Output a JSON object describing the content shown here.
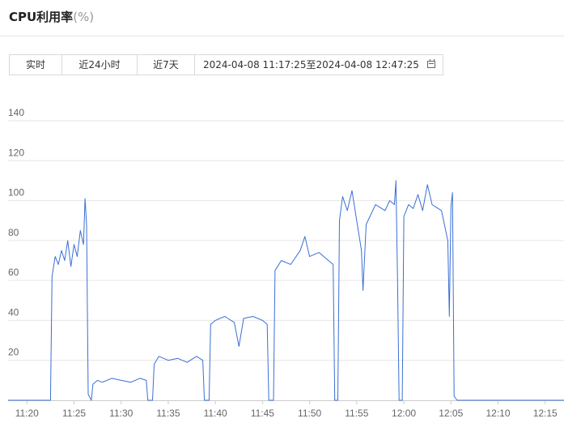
{
  "header": {
    "title": "CPU利用率",
    "unit": "(%)"
  },
  "toolbar": {
    "realtime": "实时",
    "last24h": "近24小时",
    "last7d": "近7天",
    "range_text": "2024-04-08 11:17:25至2024-04-08 12:47:25",
    "calendar_icon": "calendar-icon"
  },
  "chart_data": {
    "type": "line",
    "xlabel": "",
    "ylabel": "",
    "ylim": [
      0,
      140
    ],
    "yticks": [
      20,
      40,
      60,
      80,
      100,
      120,
      140
    ],
    "xticks": [
      "11:20",
      "11:25",
      "11:30",
      "11:35",
      "11:40",
      "11:45",
      "11:50",
      "11:55",
      "12:00",
      "12:05",
      "12:10",
      "12:15"
    ],
    "xlim": [
      "11:18:00",
      "12:17:00"
    ],
    "grid": "horizontal",
    "series": [
      {
        "color": "#3b6fd4",
        "points": [
          [
            "11:18:00",
            0
          ],
          [
            "11:22:30",
            0
          ],
          [
            "11:22:40",
            62
          ],
          [
            "11:23:00",
            72
          ],
          [
            "11:23:20",
            68
          ],
          [
            "11:23:40",
            75
          ],
          [
            "11:24:00",
            70
          ],
          [
            "11:24:20",
            80
          ],
          [
            "11:24:40",
            67
          ],
          [
            "11:25:00",
            78
          ],
          [
            "11:25:20",
            72
          ],
          [
            "11:25:40",
            85
          ],
          [
            "11:26:00",
            78
          ],
          [
            "11:26:10",
            101
          ],
          [
            "11:26:20",
            88
          ],
          [
            "11:26:30",
            3
          ],
          [
            "11:26:50",
            0
          ],
          [
            "11:27:00",
            8
          ],
          [
            "11:27:30",
            10
          ],
          [
            "11:28:00",
            9
          ],
          [
            "11:29:00",
            11
          ],
          [
            "11:30:00",
            10
          ],
          [
            "11:31:00",
            9
          ],
          [
            "11:32:00",
            11
          ],
          [
            "11:32:40",
            10
          ],
          [
            "11:32:50",
            0
          ],
          [
            "11:33:20",
            0
          ],
          [
            "11:33:30",
            18
          ],
          [
            "11:34:00",
            22
          ],
          [
            "11:35:00",
            20
          ],
          [
            "11:36:00",
            21
          ],
          [
            "11:37:00",
            19
          ],
          [
            "11:38:00",
            22
          ],
          [
            "11:38:40",
            20
          ],
          [
            "11:38:50",
            0
          ],
          [
            "11:39:20",
            0
          ],
          [
            "11:39:30",
            38
          ],
          [
            "11:40:00",
            40
          ],
          [
            "11:41:00",
            42
          ],
          [
            "11:42:00",
            39
          ],
          [
            "11:42:30",
            27
          ],
          [
            "11:43:00",
            41
          ],
          [
            "11:44:00",
            42
          ],
          [
            "11:45:00",
            40
          ],
          [
            "11:45:30",
            38
          ],
          [
            "11:45:40",
            0
          ],
          [
            "11:46:10",
            0
          ],
          [
            "11:46:20",
            65
          ],
          [
            "11:47:00",
            70
          ],
          [
            "11:48:00",
            68
          ],
          [
            "11:49:00",
            75
          ],
          [
            "11:49:30",
            82
          ],
          [
            "11:50:00",
            72
          ],
          [
            "11:51:00",
            74
          ],
          [
            "11:52:00",
            70
          ],
          [
            "11:52:30",
            68
          ],
          [
            "11:52:40",
            0
          ],
          [
            "11:53:00",
            0
          ],
          [
            "11:53:10",
            90
          ],
          [
            "11:53:30",
            102
          ],
          [
            "11:54:00",
            95
          ],
          [
            "11:54:30",
            105
          ],
          [
            "11:55:00",
            90
          ],
          [
            "11:55:30",
            75
          ],
          [
            "11:55:40",
            55
          ],
          [
            "11:56:00",
            88
          ],
          [
            "11:57:00",
            98
          ],
          [
            "11:58:00",
            95
          ],
          [
            "11:58:30",
            100
          ],
          [
            "11:59:00",
            98
          ],
          [
            "11:59:10",
            110
          ],
          [
            "11:59:20",
            60
          ],
          [
            "11:59:30",
            0
          ],
          [
            "11:59:50",
            0
          ],
          [
            "12:00:00",
            92
          ],
          [
            "12:00:30",
            98
          ],
          [
            "12:01:00",
            96
          ],
          [
            "12:01:30",
            103
          ],
          [
            "12:02:00",
            95
          ],
          [
            "12:02:30",
            108
          ],
          [
            "12:03:00",
            98
          ],
          [
            "12:04:00",
            95
          ],
          [
            "12:04:40",
            80
          ],
          [
            "12:04:50",
            42
          ],
          [
            "12:05:00",
            97
          ],
          [
            "12:05:10",
            104
          ],
          [
            "12:05:20",
            2
          ],
          [
            "12:05:40",
            0
          ],
          [
            "12:17:00",
            0
          ]
        ]
      }
    ]
  }
}
